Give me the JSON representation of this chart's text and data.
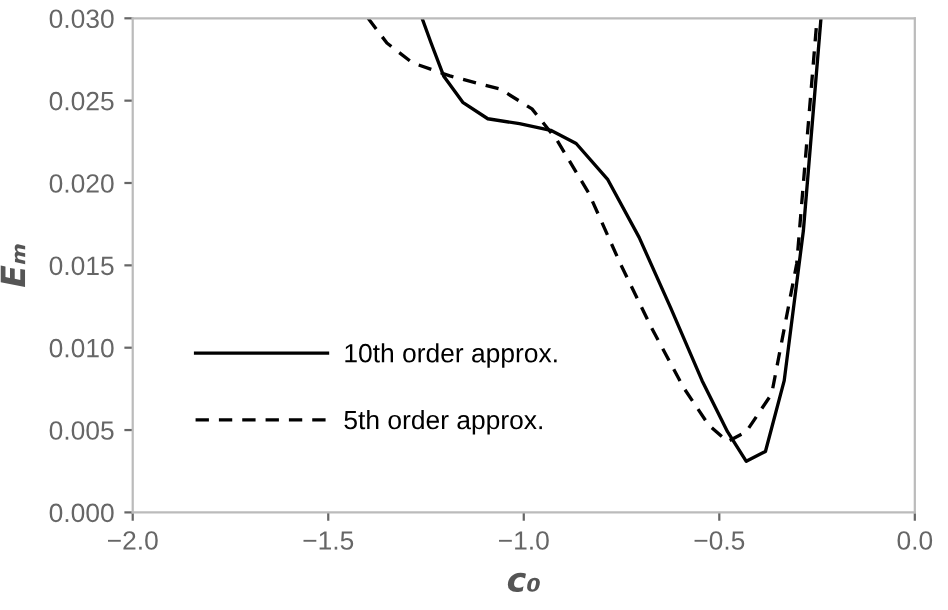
{
  "chart_data": {
    "type": "line",
    "xlabel": "c₀",
    "ylabel": "Eₘ",
    "xlim": [
      -2.0,
      0.0
    ],
    "ylim": [
      0.0,
      0.03
    ],
    "xticks": [
      {
        "value": -2.0,
        "label": "−2.0"
      },
      {
        "value": -1.5,
        "label": "−1.5"
      },
      {
        "value": -1.0,
        "label": "−1.0"
      },
      {
        "value": -0.5,
        "label": "−0.5"
      },
      {
        "value": 0.0,
        "label": "0.0"
      }
    ],
    "yticks": [
      {
        "value": 0.0,
        "label": "0.000"
      },
      {
        "value": 0.005,
        "label": "0.005"
      },
      {
        "value": 0.01,
        "label": "0.010"
      },
      {
        "value": 0.015,
        "label": "0.015"
      },
      {
        "value": 0.02,
        "label": "0.020"
      },
      {
        "value": 0.025,
        "label": "0.025"
      },
      {
        "value": 0.03,
        "label": "0.030"
      }
    ],
    "grid": false,
    "legend": "bottom left",
    "series": [
      {
        "name": "10th order approx.",
        "color": "#000000",
        "line_style": "solid",
        "x": [
          -1.26,
          -1.237,
          -1.205,
          -1.156,
          -1.092,
          -1.011,
          -0.931,
          -0.866,
          -0.785,
          -0.705,
          -0.624,
          -0.544,
          -0.479,
          -0.431,
          -0.382,
          -0.334,
          -0.285,
          -0.24
        ],
        "values": [
          0.03,
          0.0285,
          0.0265,
          0.0249,
          0.0239,
          0.0236,
          0.0232,
          0.0224,
          0.0202,
          0.0167,
          0.0124,
          0.008,
          0.0049,
          0.0031,
          0.0037,
          0.008,
          0.0171,
          0.03
        ]
      },
      {
        "name": "5th order approx.",
        "color": "#000000",
        "line_style": "dashed",
        "x": [
          -1.398,
          -1.35,
          -1.285,
          -1.189,
          -1.06,
          -0.979,
          -0.915,
          -0.834,
          -0.753,
          -0.673,
          -0.592,
          -0.527,
          -0.479,
          -0.431,
          -0.366,
          -0.302,
          -0.25
        ],
        "values": [
          0.03,
          0.0285,
          0.0273,
          0.0265,
          0.0257,
          0.0245,
          0.0226,
          0.0194,
          0.0151,
          0.0112,
          0.0076,
          0.0053,
          0.0043,
          0.0049,
          0.0072,
          0.0151,
          0.03
        ]
      }
    ]
  }
}
